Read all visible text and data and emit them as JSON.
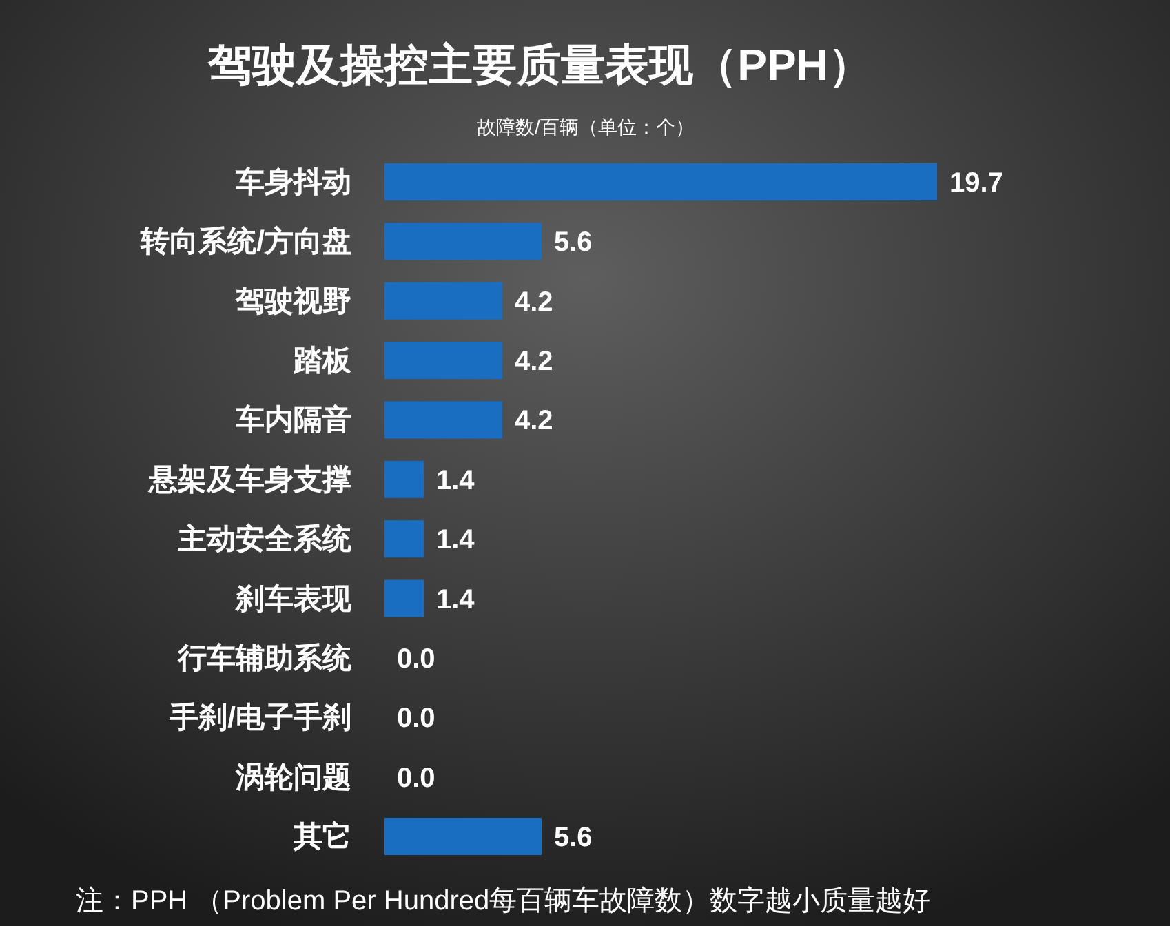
{
  "chart_data": {
    "type": "bar",
    "orientation": "horizontal",
    "title": "驾驶及操控主要质量表现（PPH）",
    "subtitle": "故障数/百辆（单位：个）",
    "categories": [
      "车身抖动",
      "转向系统/方向盘",
      "驾驶视野",
      "踏板",
      "车内隔音",
      "悬架及车身支撑",
      "主动安全系统",
      "刹车表现",
      "行车辅助系统",
      "手刹/电子手刹",
      "涡轮问题",
      "其它"
    ],
    "values": [
      19.7,
      5.6,
      4.2,
      4.2,
      4.2,
      1.4,
      1.4,
      1.4,
      0.0,
      0.0,
      0.0,
      5.6
    ],
    "value_labels": [
      "19.7",
      "5.6",
      "4.2",
      "4.2",
      "4.2",
      "1.4",
      "1.4",
      "1.4",
      "0.0",
      "0.0",
      "0.0",
      "5.6"
    ],
    "color": "#1a6ec2",
    "annotations": [
      "注：PPH （Problem Per Hundred每百辆车故障数）数字越小质量越好"
    ]
  }
}
